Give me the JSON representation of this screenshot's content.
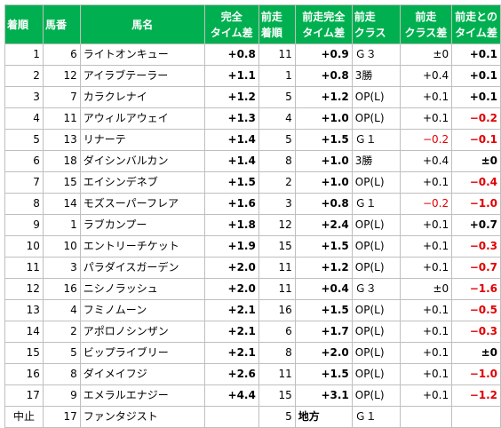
{
  "headers": [
    {
      "lines": [
        "着順"
      ]
    },
    {
      "lines": [
        "馬番"
      ]
    },
    {
      "lines": [
        "馬名"
      ]
    },
    {
      "lines": [
        "完全",
        "タイム差"
      ]
    },
    {
      "lines": [
        "前走",
        "着順"
      ]
    },
    {
      "lines": [
        "前走完全",
        "タイム差"
      ]
    },
    {
      "lines": [
        "前走",
        "クラス"
      ]
    },
    {
      "lines": [
        "前走",
        "クラス差"
      ]
    },
    {
      "lines": [
        "前走との",
        "タイム差"
      ]
    }
  ],
  "rows": [
    {
      "rank": "1",
      "num": "6",
      "name": "ライトオンキュー",
      "diff": "+0.8",
      "prev_rank": "11",
      "prev_diff": "+0.9",
      "prev_class": "Ｇ３",
      "class_diff": "±0",
      "delta": "+0.1"
    },
    {
      "rank": "2",
      "num": "12",
      "name": "アイラブテーラー",
      "diff": "+1.1",
      "prev_rank": "1",
      "prev_diff": "+0.8",
      "prev_class": "3勝",
      "class_diff": "+0.4",
      "delta": "+0.1"
    },
    {
      "rank": "3",
      "num": "7",
      "name": "カラクレナイ",
      "diff": "+1.2",
      "prev_rank": "5",
      "prev_diff": "+1.2",
      "prev_class": "OP(L)",
      "class_diff": "+0.1",
      "delta": "+0.1"
    },
    {
      "rank": "4",
      "num": "11",
      "name": "アウィルアウェイ",
      "diff": "+1.3",
      "prev_rank": "4",
      "prev_diff": "+1.0",
      "prev_class": "OP(L)",
      "class_diff": "+0.1",
      "delta": "−0.2"
    },
    {
      "rank": "5",
      "num": "13",
      "name": "リナーテ",
      "diff": "+1.4",
      "prev_rank": "5",
      "prev_diff": "+1.5",
      "prev_class": "Ｇ１",
      "class_diff": "−0.2",
      "delta": "−0.1"
    },
    {
      "rank": "6",
      "num": "18",
      "name": "ダイシンバルカン",
      "diff": "+1.4",
      "prev_rank": "8",
      "prev_diff": "+1.0",
      "prev_class": "3勝",
      "class_diff": "+0.4",
      "delta": "±0"
    },
    {
      "rank": "7",
      "num": "15",
      "name": "エイシンデネブ",
      "diff": "+1.5",
      "prev_rank": "2",
      "prev_diff": "+1.0",
      "prev_class": "OP(L)",
      "class_diff": "+0.1",
      "delta": "−0.4"
    },
    {
      "rank": "8",
      "num": "14",
      "name": "モズスーパーフレア",
      "diff": "+1.6",
      "prev_rank": "3",
      "prev_diff": "+0.8",
      "prev_class": "Ｇ１",
      "class_diff": "−0.2",
      "delta": "−1.0"
    },
    {
      "rank": "9",
      "num": "1",
      "name": "ラブカンプー",
      "diff": "+1.8",
      "prev_rank": "12",
      "prev_diff": "+2.4",
      "prev_class": "OP(L)",
      "class_diff": "+0.1",
      "delta": "+0.7"
    },
    {
      "rank": "10",
      "num": "10",
      "name": "エントリーチケット",
      "diff": "+1.9",
      "prev_rank": "15",
      "prev_diff": "+1.5",
      "prev_class": "OP(L)",
      "class_diff": "+0.1",
      "delta": "−0.3"
    },
    {
      "rank": "11",
      "num": "3",
      "name": "パラダイスガーデン",
      "diff": "+2.0",
      "prev_rank": "11",
      "prev_diff": "+1.2",
      "prev_class": "OP(L)",
      "class_diff": "+0.1",
      "delta": "−0.7"
    },
    {
      "rank": "12",
      "num": "16",
      "name": "ニシノラッシュ",
      "diff": "+2.0",
      "prev_rank": "11",
      "prev_diff": "+0.4",
      "prev_class": "Ｇ３",
      "class_diff": "±0",
      "delta": "−1.6"
    },
    {
      "rank": "13",
      "num": "4",
      "name": "フミノムーン",
      "diff": "+2.1",
      "prev_rank": "16",
      "prev_diff": "+1.5",
      "prev_class": "OP(L)",
      "class_diff": "+0.1",
      "delta": "−0.5"
    },
    {
      "rank": "14",
      "num": "2",
      "name": "アポロノシンザン",
      "diff": "+2.1",
      "prev_rank": "6",
      "prev_diff": "+1.7",
      "prev_class": "OP(L)",
      "class_diff": "+0.1",
      "delta": "−0.3"
    },
    {
      "rank": "15",
      "num": "5",
      "name": "ビップライブリー",
      "diff": "+2.1",
      "prev_rank": "8",
      "prev_diff": "+2.0",
      "prev_class": "OP(L)",
      "class_diff": "+0.1",
      "delta": "±0"
    },
    {
      "rank": "16",
      "num": "8",
      "name": "ダイメイフジ",
      "diff": "+2.6",
      "prev_rank": "11",
      "prev_diff": "+1.5",
      "prev_class": "OP(L)",
      "class_diff": "+0.1",
      "delta": "−1.0"
    },
    {
      "rank": "17",
      "num": "9",
      "name": "エメラルエナジー",
      "diff": "+4.4",
      "prev_rank": "15",
      "prev_diff": "+3.1",
      "prev_class": "OP(L)",
      "class_diff": "+0.1",
      "delta": "−1.2"
    },
    {
      "rank": "中止",
      "num": "17",
      "name": "ファンタジスト",
      "diff": "",
      "prev_rank": "5",
      "prev_diff": "地方",
      "prev_class": "Ｇ１",
      "class_diff": "",
      "delta": ""
    }
  ],
  "colors": {
    "header_bg": "#00b050",
    "header_text": "#ffffff",
    "negative": "#e00000",
    "grid": "#bfbfbf"
  }
}
